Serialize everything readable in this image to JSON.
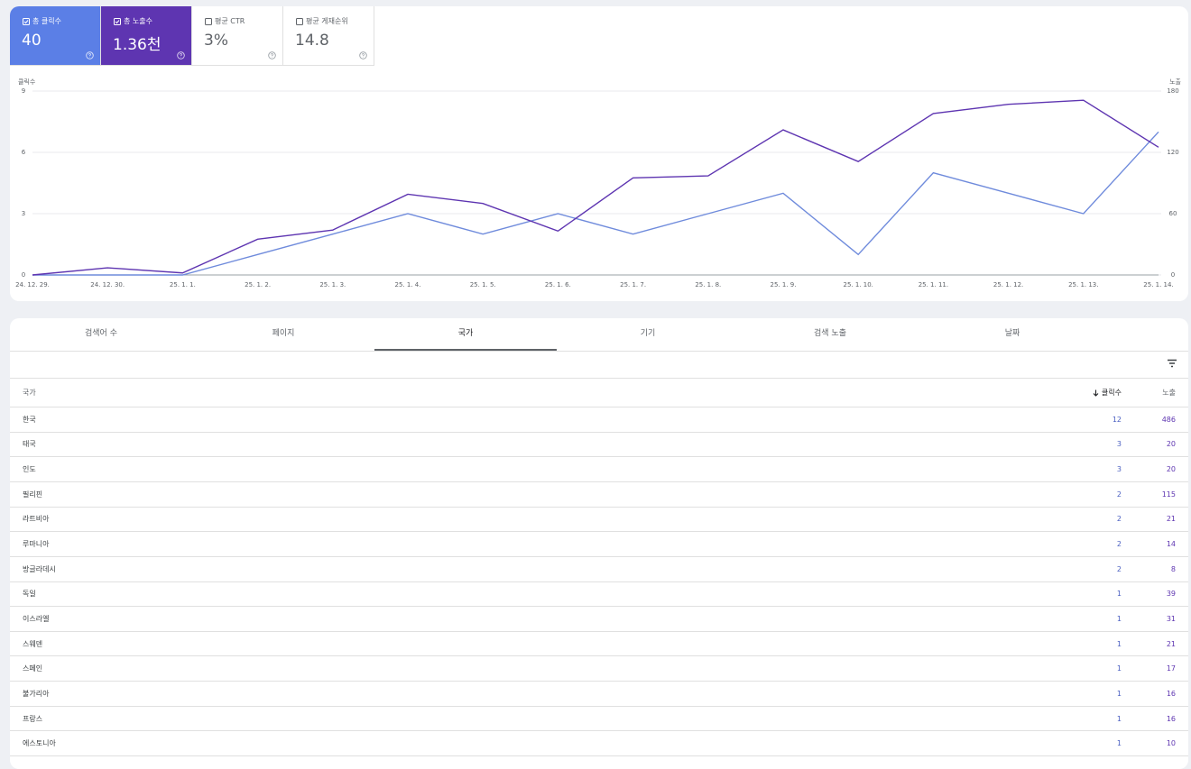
{
  "metrics": [
    {
      "label": "총 클릭수",
      "value": "40",
      "checked": true,
      "color": "#5b7fe6"
    },
    {
      "label": "총 노출수",
      "value": "1.36천",
      "checked": true,
      "color": "#5e35b1"
    },
    {
      "label": "평균 CTR",
      "value": "3%",
      "checked": false,
      "color": "#ffffff"
    },
    {
      "label": "평균 게재순위",
      "value": "14.8",
      "checked": false,
      "color": "#ffffff"
    }
  ],
  "chart_data": {
    "type": "line",
    "categories": [
      "24. 12. 29.",
      "24. 12. 30.",
      "25. 1. 1.",
      "25. 1. 2.",
      "25. 1. 3.",
      "25. 1. 4.",
      "25. 1. 5.",
      "25. 1. 6.",
      "25. 1. 7.",
      "25. 1. 8.",
      "25. 1. 9.",
      "25. 1. 10.",
      "25. 1. 11.",
      "25. 1. 12.",
      "25. 1. 13.",
      "25. 1. 14."
    ],
    "series": [
      {
        "name": "클릭수",
        "color": "#6f8bdc",
        "values": [
          0,
          0,
          0,
          1,
          2,
          3,
          2,
          3,
          2,
          3,
          4,
          1,
          5,
          4,
          3,
          7
        ]
      },
      {
        "name": "노출",
        "color": "#5e35b1",
        "axis": "y2",
        "values": [
          0,
          7,
          2,
          35,
          44,
          79,
          70,
          43,
          95,
          97,
          142,
          111,
          158,
          167,
          171,
          125
        ]
      }
    ],
    "ylim": [
      0,
      9
    ],
    "yticks": [
      0,
      3,
      6,
      9
    ],
    "y2lim": [
      0,
      180
    ],
    "y2ticks": [
      0,
      60,
      120,
      180
    ],
    "grid": true
  },
  "tabs": {
    "items": [
      "검색어 수",
      "페이지",
      "국가",
      "기기",
      "검색 노출",
      "날짜"
    ],
    "active": 2
  },
  "table": {
    "columns": [
      "국가",
      "클릭수",
      "노출"
    ],
    "sort_column": 1,
    "rows": [
      [
        "한국",
        12,
        486
      ],
      [
        "태국",
        3,
        20
      ],
      [
        "인도",
        3,
        20
      ],
      [
        "필리핀",
        2,
        115
      ],
      [
        "라트비아",
        2,
        21
      ],
      [
        "루마니아",
        2,
        14
      ],
      [
        "방글라데시",
        2,
        8
      ],
      [
        "독일",
        1,
        39
      ],
      [
        "이스라엘",
        1,
        31
      ],
      [
        "스웨덴",
        1,
        21
      ],
      [
        "스페인",
        1,
        17
      ],
      [
        "불가리아",
        1,
        16
      ],
      [
        "프랑스",
        1,
        16
      ],
      [
        "에스토니아",
        1,
        10
      ]
    ]
  }
}
